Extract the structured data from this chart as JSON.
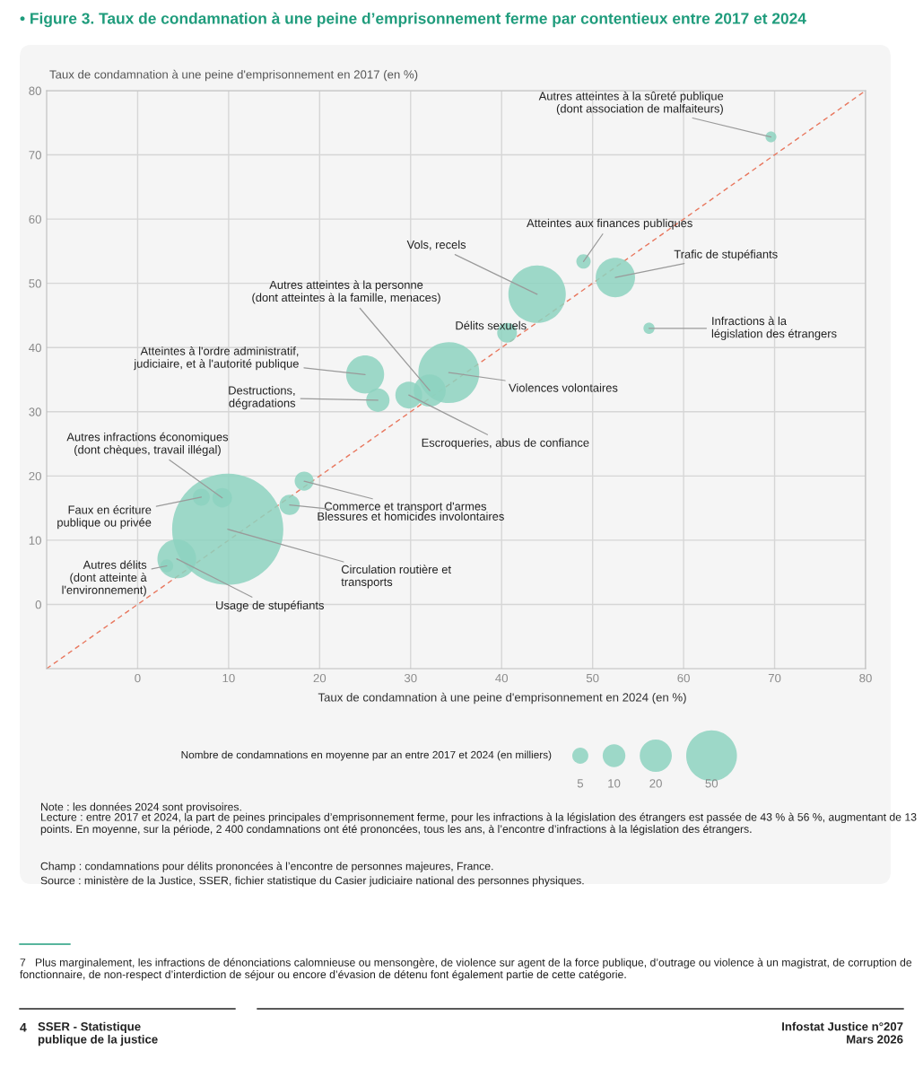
{
  "chart_data": {
    "type": "bubble",
    "title": "• Figure 3. Taux de condamnation à une peine d’emprisonnement ferme par contentieux entre 2017 et 2024",
    "xlabel": "Taux de condamnation à une peine d'emprisonnement en 2024 (en %)",
    "ylabel": "Taux de condamnation à une peine d'emprisonnement en 2017 (en %)",
    "legend_title": "Nombre de condamnations en moyenne par an entre 2017 et 2024 (en milliers)",
    "size_legend": [
      5,
      10,
      20,
      50
    ],
    "xlim": [
      -10,
      80
    ],
    "ylim": [
      -10,
      80
    ],
    "xticks": [
      0,
      10,
      20,
      30,
      40,
      50,
      60,
      70,
      80
    ],
    "yticks": [
      0,
      10,
      20,
      30,
      40,
      50,
      60,
      70,
      80
    ],
    "grid": true,
    "series": [
      {
        "name": "Autres atteintes à la sûreté publique\n(dont association de malfaiteurs)",
        "color": "#8dd2c0",
        "x": [
          69.6
        ],
        "values": [
          72.8
        ],
        "sizes": [
          2.3
        ]
      },
      {
        "name": "Atteintes aux finances publiques",
        "color": "#8dd2c0",
        "x": [
          49.0
        ],
        "values": [
          53.4
        ],
        "sizes": [
          4
        ]
      },
      {
        "name": "Trafic de stupéfiants",
        "color": "#8dd2c0",
        "x": [
          52.5
        ],
        "values": [
          50.9
        ],
        "sizes": [
          30
        ]
      },
      {
        "name": "Vols, recels",
        "color": "#8dd2c0",
        "x": [
          43.9
        ],
        "values": [
          48.3
        ],
        "sizes": [
          64
        ]
      },
      {
        "name": "Délits sexuels",
        "color": "#8dd2c0",
        "x": [
          40.6
        ],
        "values": [
          42.3
        ],
        "sizes": [
          7.6
        ]
      },
      {
        "name": "Infractions à la\nlégislation des étrangers",
        "color": "#8dd2c0",
        "x": [
          56.2
        ],
        "values": [
          43.0
        ],
        "sizes": [
          2.4
        ]
      },
      {
        "name": "Violences volontaires",
        "color": "#8dd2c0",
        "x": [
          34.2
        ],
        "values": [
          36.1
        ],
        "sizes": [
          72
        ]
      },
      {
        "name": "Autres atteintes à la personne\n(dont atteintes à la famille, menaces)",
        "color": "#8dd2c0",
        "x": [
          32.1
        ],
        "values": [
          33.3
        ],
        "sizes": [
          20
        ]
      },
      {
        "name": "Escroqueries, abus de confiance",
        "color": "#8dd2c0",
        "x": [
          29.8
        ],
        "values": [
          32.6
        ],
        "sizes": [
          14
        ]
      },
      {
        "name": "Atteintes à l'ordre administratif,\njudiciaire, et à l'autorité publique",
        "color": "#8dd2c0",
        "x": [
          25.0
        ],
        "values": [
          35.8
        ],
        "sizes": [
          28
        ]
      },
      {
        "name": "Destructions,\ndégradations",
        "color": "#8dd2c0",
        "x": [
          26.4
        ],
        "values": [
          31.8
        ],
        "sizes": [
          10.6
        ]
      },
      {
        "name": "Commerce et transport d'armes",
        "color": "#8dd2c0",
        "x": [
          18.3
        ],
        "values": [
          19.2
        ],
        "sizes": [
          7
        ]
      },
      {
        "name": "Blessures et homicides involontaires",
        "color": "#8dd2c0",
        "x": [
          16.7
        ],
        "values": [
          15.5
        ],
        "sizes": [
          8
        ]
      },
      {
        "name": "Circulation routière et\ntransports",
        "color": "#8dd2c0",
        "x": [
          9.9
        ],
        "values": [
          11.7
        ],
        "sizes": [
          240
        ]
      },
      {
        "name": "Autres infractions économiques\n(dont chèques, travail illégal)",
        "color": "#8dd2c0",
        "x": [
          9.3
        ],
        "values": [
          16.6
        ],
        "sizes": [
          7.4
        ]
      },
      {
        "name": "Faux en écriture\npublique ou privée",
        "color": "#8dd2c0",
        "x": [
          7.0
        ],
        "values": [
          16.7
        ],
        "sizes": [
          5.6
        ]
      },
      {
        "name": "Usage de stupéfiants",
        "color": "#8dd2c0",
        "x": [
          4.3
        ],
        "values": [
          7.1
        ],
        "sizes": [
          29
        ]
      },
      {
        "name": "Autres délits\n(dont atteinte à\nl'environnement)",
        "color": "#8dd2c0",
        "x": [
          3.2
        ],
        "values": [
          6.0
        ],
        "sizes": [
          3.2
        ]
      },
      {
        "type": "line",
        "x": [
          -10,
          80
        ],
        "values": [
          -10,
          80
        ],
        "color": "#e8775e",
        "line_style": "dashed"
      }
    ],
    "annotations": [
      "Note : les données 2024 sont provisoires.",
      "Lecture : entre 2017 et 2024, la part de peines principales d’emprisonnement ferme, pour les infractions à la législation des étrangers est passée de 43 % à 56 %, augmentant de 13 points. En moyenne, sur la période, 2 400 condamnations ont été prononcées, tous les ans, à l’encontre d’infractions à la législation des étrangers.",
      "Champ : condamnations pour délits prononcées à l’encontre de personnes majeures, France.",
      "Source : ministère de la Justice, SSER, fichier statistique du Casier judiciaire national des personnes physiques.",
      "7   Plus marginalement, les infractions de dénonciations calomnieuse ou mensongère, de violence sur agent de la force publique, d’outrage ou violence à un magistrat, de corruption de fonctionnaire, de non-respect d’interdiction de séjour ou encore d’évasion de détenu font également partie de cette catégorie.",
      "4",
      "SSER - Statistique\npublique de la justice",
      "Infostat Justice n°207\nMars 2026"
    ]
  }
}
